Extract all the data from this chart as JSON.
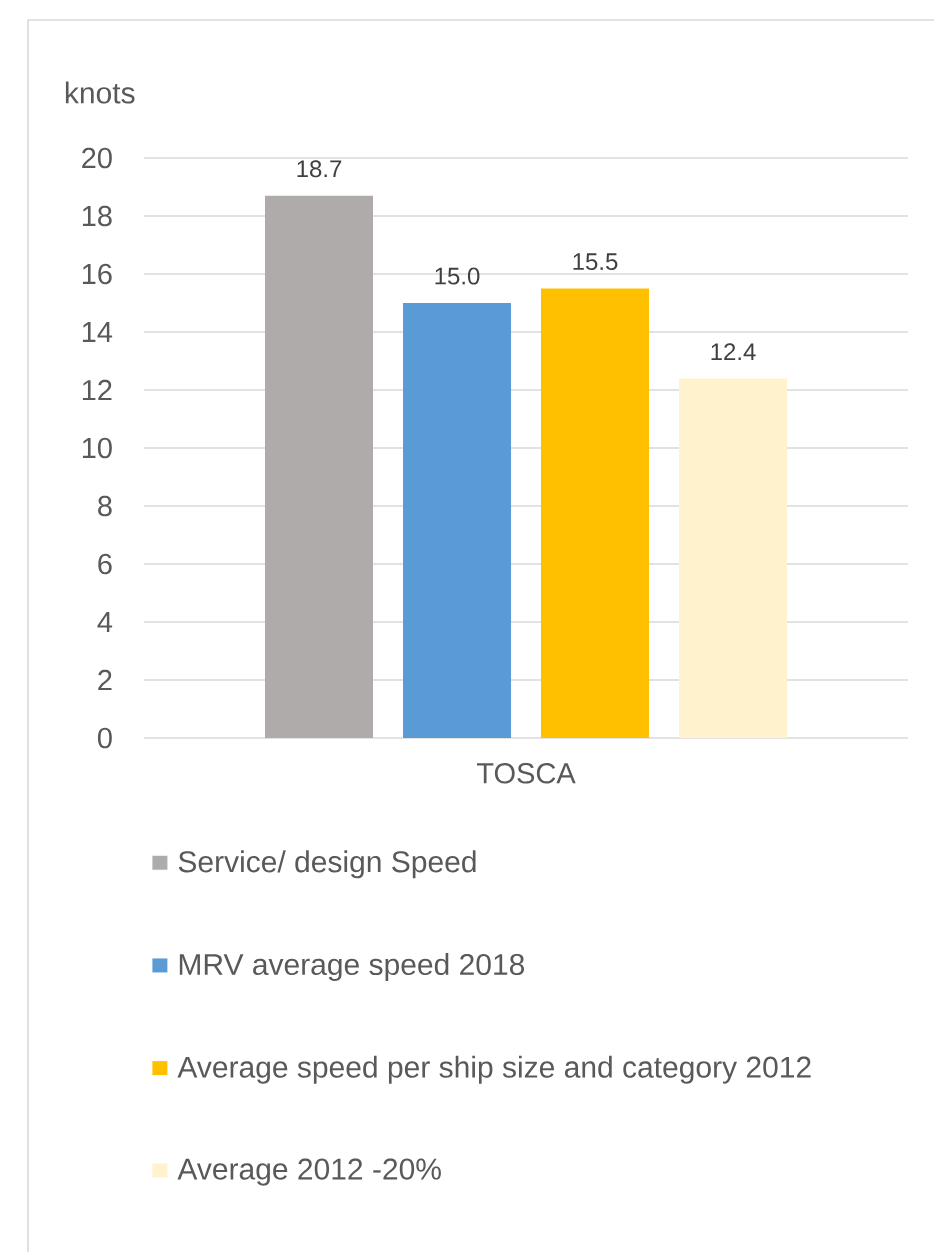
{
  "chart_data": {
    "type": "bar",
    "categories": [
      "TOSCA"
    ],
    "ylabel": "knots",
    "ylim": [
      0,
      20
    ],
    "yticks": [
      0,
      2,
      4,
      6,
      8,
      10,
      12,
      14,
      16,
      18,
      20
    ],
    "grid": "y",
    "legend": "bottom",
    "series": [
      {
        "name": "Service/ design Speed",
        "color": "#afabab",
        "values": [
          18.7
        ],
        "value_labels": [
          "18.7"
        ]
      },
      {
        "name": "MRV average speed 2018",
        "color": "#5b9bd5",
        "values": [
          15.0
        ],
        "value_labels": [
          "15.0"
        ]
      },
      {
        "name": "Average speed per ship size and category 2012",
        "color": "#ffc000",
        "values": [
          15.5
        ],
        "value_labels": [
          "15.5"
        ]
      },
      {
        "name": "Average 2012 -20%",
        "color": "#fff2cc",
        "values": [
          12.4
        ],
        "value_labels": [
          "12.4"
        ]
      }
    ]
  }
}
